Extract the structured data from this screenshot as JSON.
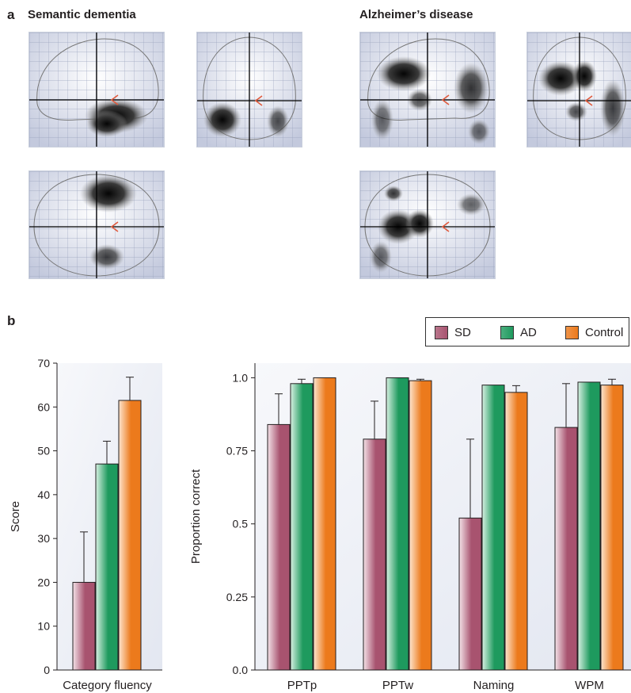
{
  "panel_a": {
    "letter": "a",
    "left_title": "Semantic dementia",
    "right_title": "Alzheimer’s disease"
  },
  "panel_b": {
    "letter": "b"
  },
  "legend": {
    "items": [
      {
        "label": "SD",
        "color": "#a8536f"
      },
      {
        "label": "AD",
        "color": "#1e9a5e"
      },
      {
        "label": "Control",
        "color": "#ec7a1c"
      }
    ]
  },
  "colors": {
    "SD": "#a8536f",
    "AD": "#1e9a5e",
    "Control": "#ec7a1c",
    "crosshair": "#000000",
    "marker": "#e05a3c",
    "plot_bg": "#e3e7f1"
  },
  "chart_data": [
    {
      "type": "bar",
      "ylabel": "Score",
      "xlabel": "",
      "ylim": [
        0,
        70
      ],
      "yticks": [
        "0",
        "10",
        "20",
        "30",
        "40",
        "50",
        "60",
        "70"
      ],
      "categories": [
        "Category fluency"
      ],
      "series": [
        {
          "name": "SD",
          "values": [
            20
          ],
          "errors": [
            11.5
          ]
        },
        {
          "name": "AD",
          "values": [
            47
          ],
          "errors": [
            5.2
          ]
        },
        {
          "name": "Control",
          "values": [
            61.5
          ],
          "errors": [
            5.3
          ]
        }
      ]
    },
    {
      "type": "bar",
      "ylabel": "Proportion correct",
      "xlabel": "",
      "ylim": [
        0,
        1.05
      ],
      "yticks": [
        "0.0",
        "0.25",
        "0.5",
        "0.75",
        "1.0"
      ],
      "categories": [
        "PPTp",
        "PPTw",
        "Naming",
        "WPM"
      ],
      "series": [
        {
          "name": "SD",
          "values": [
            0.84,
            0.79,
            0.52,
            0.83
          ],
          "errors": [
            0.105,
            0.13,
            0.27,
            0.15
          ]
        },
        {
          "name": "AD",
          "values": [
            0.98,
            1.0,
            0.975,
            0.985
          ],
          "errors": [
            0.015,
            0,
            0,
            0
          ]
        },
        {
          "name": "Control",
          "values": [
            1.0,
            0.99,
            0.95,
            0.975
          ],
          "errors": [
            0,
            0.005,
            0.023,
            0.02
          ]
        }
      ]
    }
  ]
}
